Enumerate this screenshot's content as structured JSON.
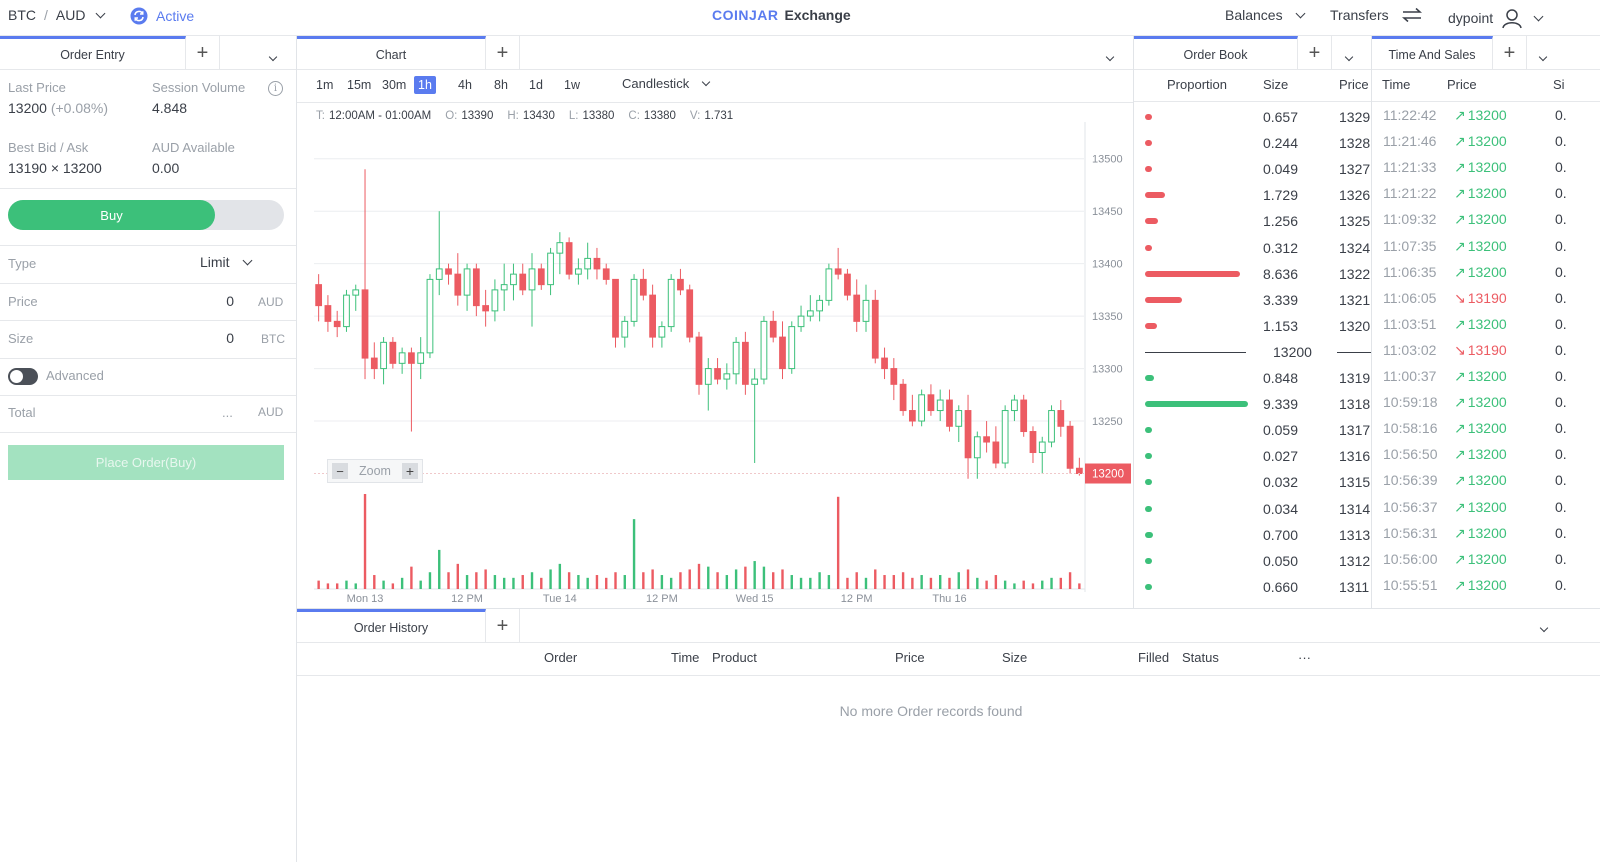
{
  "topbar": {
    "pair_base": "BTC",
    "pair_sep": "/",
    "pair_quote": "AUD",
    "status": "Active",
    "brand": "COINJAR",
    "brand_sub": "Exchange",
    "balances": "Balances",
    "transfers": "Transfers",
    "user": "dypoint"
  },
  "order_entry": {
    "tab": "Order Entry",
    "last_price_label": "Last Price",
    "last_price": "13200",
    "last_change": "(+0.08%)",
    "session_volume_label": "Session Volume",
    "session_volume": "4.848",
    "best_bid_ask_label": "Best Bid / Ask",
    "best_bid_ask": "13190 × 13200",
    "aud_available_label": "AUD Available",
    "aud_available": "0.00",
    "buy_label": "Buy",
    "type_label": "Type",
    "type_value": "Limit",
    "price_label": "Price",
    "price_value": "0",
    "price_unit": "AUD",
    "size_label": "Size",
    "size_value": "0",
    "size_unit": "BTC",
    "advanced_label": "Advanced",
    "total_label": "Total",
    "total_value": "...",
    "total_unit": "AUD",
    "place_order": "Place Order(Buy)"
  },
  "chart": {
    "tab": "Chart",
    "timeframes": [
      "1m",
      "15m",
      "30m",
      "1h",
      "4h",
      "8h",
      "1d",
      "1w"
    ],
    "active_timeframe": "1h",
    "style": "Candlestick",
    "ohlc": {
      "t_label": "T:",
      "t": "12:00AM - 01:00AM",
      "o_label": "O:",
      "o": "13390",
      "h_label": "H:",
      "h": "13430",
      "l_label": "L:",
      "l": "13380",
      "c_label": "C:",
      "c": "13380",
      "v_label": "V:",
      "v": "1.731"
    },
    "zoom_label": "Zoom",
    "zoom_minus": "−",
    "zoom_plus": "+",
    "current_price_tag": "13200"
  },
  "chart_data": {
    "type": "candlestick",
    "y_ticks": [
      13250,
      13300,
      13350,
      13400,
      13450,
      13500
    ],
    "ylim": [
      13190,
      13535
    ],
    "x_tick_labels": [
      "Mon 13",
      "12 PM",
      "Tue 14",
      "12 PM",
      "Wed 15",
      "12 PM",
      "Thu 16"
    ],
    "x_tick_index": [
      5,
      16,
      26,
      37,
      47,
      58,
      68
    ],
    "last_price": 13200,
    "candles": [
      [
        13380,
        13390,
        13345,
        13360,
        0.3
      ],
      [
        13360,
        13370,
        13335,
        13345,
        0.2
      ],
      [
        13345,
        13355,
        13330,
        13340,
        0.2
      ],
      [
        13340,
        13375,
        13335,
        13370,
        0.3
      ],
      [
        13370,
        13380,
        13355,
        13375,
        0.2
      ],
      [
        13375,
        13490,
        13290,
        13310,
        3.4
      ],
      [
        13310,
        13325,
        13290,
        13300,
        0.5
      ],
      [
        13300,
        13330,
        13285,
        13325,
        0.3
      ],
      [
        13325,
        13330,
        13300,
        13305,
        0.2
      ],
      [
        13305,
        13320,
        13295,
        13315,
        0.4
      ],
      [
        13315,
        13320,
        13240,
        13305,
        0.8
      ],
      [
        13305,
        13330,
        13290,
        13315,
        0.3
      ],
      [
        13315,
        13390,
        13310,
        13385,
        0.6
      ],
      [
        13385,
        13450,
        13370,
        13395,
        1.4
      ],
      [
        13395,
        13400,
        13380,
        13390,
        0.6
      ],
      [
        13390,
        13410,
        13360,
        13370,
        0.9
      ],
      [
        13370,
        13400,
        13355,
        13395,
        0.5
      ],
      [
        13395,
        13400,
        13350,
        13360,
        0.6
      ],
      [
        13360,
        13375,
        13340,
        13355,
        0.7
      ],
      [
        13355,
        13385,
        13345,
        13375,
        0.5
      ],
      [
        13375,
        13400,
        13355,
        13380,
        0.4
      ],
      [
        13380,
        13400,
        13365,
        13390,
        0.4
      ],
      [
        13390,
        13400,
        13370,
        13375,
        0.5
      ],
      [
        13375,
        13410,
        13340,
        13395,
        0.6
      ],
      [
        13395,
        13400,
        13375,
        13380,
        0.4
      ],
      [
        13380,
        13415,
        13370,
        13410,
        0.7
      ],
      [
        13410,
        13430,
        13390,
        13420,
        0.9
      ],
      [
        13420,
        13425,
        13385,
        13390,
        0.6
      ],
      [
        13390,
        13405,
        13380,
        13395,
        0.5
      ],
      [
        13395,
        13420,
        13385,
        13405,
        0.4
      ],
      [
        13405,
        13415,
        13385,
        13395,
        0.5
      ],
      [
        13395,
        13400,
        13380,
        13385,
        0.4
      ],
      [
        13385,
        13385,
        13320,
        13330,
        0.6
      ],
      [
        13330,
        13350,
        13320,
        13345,
        0.5
      ],
      [
        13345,
        13390,
        13340,
        13385,
        2.5
      ],
      [
        13385,
        13395,
        13365,
        13370,
        0.6
      ],
      [
        13370,
        13380,
        13320,
        13330,
        0.7
      ],
      [
        13330,
        13345,
        13320,
        13340,
        0.5
      ],
      [
        13340,
        13390,
        13335,
        13385,
        0.4
      ],
      [
        13385,
        13395,
        13370,
        13375,
        0.6
      ],
      [
        13375,
        13380,
        13325,
        13330,
        0.7
      ],
      [
        13330,
        13335,
        13275,
        13285,
        0.9
      ],
      [
        13285,
        13310,
        13260,
        13300,
        0.8
      ],
      [
        13300,
        13310,
        13285,
        13290,
        0.6
      ],
      [
        13290,
        13305,
        13280,
        13295,
        0.5
      ],
      [
        13295,
        13330,
        13285,
        13325,
        0.7
      ],
      [
        13325,
        13335,
        13275,
        13285,
        0.8
      ],
      [
        13285,
        13300,
        13210,
        13290,
        1.0
      ],
      [
        13290,
        13350,
        13285,
        13345,
        0.8
      ],
      [
        13345,
        13355,
        13325,
        13330,
        0.6
      ],
      [
        13330,
        13345,
        13290,
        13300,
        0.7
      ],
      [
        13300,
        13345,
        13295,
        13340,
        0.5
      ],
      [
        13340,
        13360,
        13335,
        13350,
        0.4
      ],
      [
        13350,
        13370,
        13345,
        13355,
        0.4
      ],
      [
        13355,
        13370,
        13345,
        13365,
        0.6
      ],
      [
        13365,
        13400,
        13360,
        13395,
        0.5
      ],
      [
        13395,
        13415,
        13385,
        13390,
        3.3
      ],
      [
        13390,
        13395,
        13365,
        13370,
        0.4
      ],
      [
        13370,
        13385,
        13335,
        13345,
        0.6
      ],
      [
        13345,
        13380,
        13335,
        13365,
        0.4
      ],
      [
        13365,
        13375,
        13305,
        13310,
        0.7
      ],
      [
        13310,
        13320,
        13290,
        13300,
        0.5
      ],
      [
        13300,
        13310,
        13270,
        13285,
        0.5
      ],
      [
        13285,
        13290,
        13255,
        13260,
        0.6
      ],
      [
        13260,
        13275,
        13245,
        13250,
        0.4
      ],
      [
        13250,
        13280,
        13245,
        13275,
        0.5
      ],
      [
        13275,
        13285,
        13255,
        13260,
        0.4
      ],
      [
        13260,
        13280,
        13250,
        13270,
        0.5
      ],
      [
        13270,
        13280,
        13240,
        13245,
        0.4
      ],
      [
        13245,
        13265,
        13230,
        13260,
        0.6
      ],
      [
        13260,
        13275,
        13195,
        13215,
        0.7
      ],
      [
        13215,
        13240,
        13195,
        13235,
        0.4
      ],
      [
        13235,
        13250,
        13220,
        13230,
        0.3
      ],
      [
        13230,
        13245,
        13205,
        13210,
        0.5
      ],
      [
        13210,
        13265,
        13205,
        13260,
        0.3
      ],
      [
        13260,
        13275,
        13250,
        13270,
        0.2
      ],
      [
        13270,
        13275,
        13235,
        13240,
        0.3
      ],
      [
        13240,
        13245,
        13210,
        13220,
        0.2
      ],
      [
        13220,
        13235,
        13200,
        13230,
        0.3
      ],
      [
        13230,
        13265,
        13225,
        13260,
        0.4
      ],
      [
        13260,
        13270,
        13235,
        13245,
        0.4
      ],
      [
        13245,
        13250,
        13200,
        13205,
        0.6
      ],
      [
        13205,
        13215,
        13198,
        13200,
        0.2
      ]
    ]
  },
  "order_book": {
    "tab": "Order Book",
    "col_proportion": "Proportion",
    "col_size": "Size",
    "col_price": "Price",
    "asks": [
      {
        "size": "0.657",
        "price": "1329",
        "p": 0.07
      },
      {
        "size": "0.244",
        "price": "1328",
        "p": 0.03
      },
      {
        "size": "0.049",
        "price": "1327",
        "p": 0.01
      },
      {
        "size": "1.729",
        "price": "1326",
        "p": 0.19
      },
      {
        "size": "1.256",
        "price": "1325",
        "p": 0.13
      },
      {
        "size": "0.312",
        "price": "1324",
        "p": 0.03
      },
      {
        "size": "8.636",
        "price": "1322",
        "p": 0.92
      },
      {
        "size": "3.339",
        "price": "1321",
        "p": 0.36
      },
      {
        "size": "1.153",
        "price": "1320",
        "p": 0.12
      }
    ],
    "mid_price": "13200",
    "bids": [
      {
        "size": "0.848",
        "price": "1319",
        "p": 0.09
      },
      {
        "size": "9.339",
        "price": "1318",
        "p": 1.0
      },
      {
        "size": "0.059",
        "price": "1317",
        "p": 0.01
      },
      {
        "size": "0.027",
        "price": "1316",
        "p": 0.005
      },
      {
        "size": "0.032",
        "price": "1315",
        "p": 0.005
      },
      {
        "size": "0.034",
        "price": "1314",
        "p": 0.005
      },
      {
        "size": "0.700",
        "price": "1313",
        "p": 0.075
      },
      {
        "size": "0.050",
        "price": "1312",
        "p": 0.01
      },
      {
        "size": "0.660",
        "price": "1311",
        "p": 0.07
      }
    ]
  },
  "time_sales": {
    "tab": "Time And Sales",
    "col_time": "Time",
    "col_price": "Price",
    "col_size": "Si",
    "rows": [
      {
        "time": "11:22:42",
        "price": "13200",
        "dir": "up",
        "size": "0."
      },
      {
        "time": "11:21:46",
        "price": "13200",
        "dir": "up",
        "size": "0."
      },
      {
        "time": "11:21:33",
        "price": "13200",
        "dir": "up",
        "size": "0."
      },
      {
        "time": "11:21:22",
        "price": "13200",
        "dir": "up",
        "size": "0."
      },
      {
        "time": "11:09:32",
        "price": "13200",
        "dir": "up",
        "size": "0."
      },
      {
        "time": "11:07:35",
        "price": "13200",
        "dir": "up",
        "size": "0."
      },
      {
        "time": "11:06:35",
        "price": "13200",
        "dir": "up",
        "size": "0."
      },
      {
        "time": "11:06:05",
        "price": "13190",
        "dir": "down",
        "size": "0."
      },
      {
        "time": "11:03:51",
        "price": "13200",
        "dir": "up",
        "size": "0."
      },
      {
        "time": "11:03:02",
        "price": "13190",
        "dir": "down",
        "size": "0."
      },
      {
        "time": "11:00:37",
        "price": "13200",
        "dir": "up",
        "size": "0."
      },
      {
        "time": "10:59:18",
        "price": "13200",
        "dir": "up",
        "size": "0."
      },
      {
        "time": "10:58:16",
        "price": "13200",
        "dir": "up",
        "size": "0."
      },
      {
        "time": "10:56:50",
        "price": "13200",
        "dir": "up",
        "size": "0."
      },
      {
        "time": "10:56:39",
        "price": "13200",
        "dir": "up",
        "size": "0."
      },
      {
        "time": "10:56:37",
        "price": "13200",
        "dir": "up",
        "size": "0."
      },
      {
        "time": "10:56:31",
        "price": "13200",
        "dir": "up",
        "size": "0."
      },
      {
        "time": "10:56:00",
        "price": "13200",
        "dir": "up",
        "size": "0."
      },
      {
        "time": "10:55:51",
        "price": "13200",
        "dir": "up",
        "size": "0."
      }
    ]
  },
  "order_history": {
    "tab": "Order History",
    "cols": [
      "Order",
      "Time",
      "Product",
      "Price",
      "Size",
      "Filled",
      "Status",
      "···"
    ],
    "empty": "No more Order records found"
  },
  "colors": {
    "accent": "#5a7bef",
    "up": "#3cc07a",
    "down": "#ec5b62"
  }
}
